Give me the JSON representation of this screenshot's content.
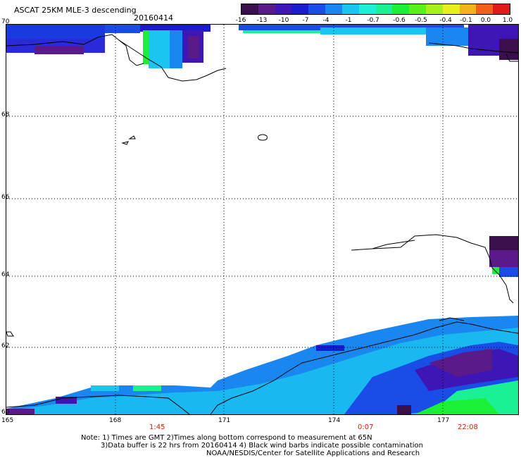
{
  "header": {
    "title": "ASCAT 25KM MLE-3 descending",
    "date": "20160414"
  },
  "colorbar": {
    "colors": [
      "#3a0f4d",
      "#5a1a8a",
      "#3d16b5",
      "#1a1ad0",
      "#1a4de8",
      "#1a87f0",
      "#1ac6f0",
      "#1af0d8",
      "#1af094",
      "#1af035",
      "#5af01a",
      "#a8f01a",
      "#e8f01a",
      "#f0b41a",
      "#f0601a",
      "#e01a1a"
    ],
    "labels": [
      "-16",
      "-13",
      "-10",
      "-7",
      "-4",
      "-1",
      "-0.7",
      "-0.6",
      "-0.5",
      "-0.4",
      "-0.1",
      "0.0",
      "1.0"
    ]
  },
  "axes": {
    "lat_labels": [
      "70",
      "68",
      "66",
      "64",
      "62",
      "60"
    ],
    "lon_labels": [
      "165",
      "168",
      "171",
      "174",
      "177"
    ],
    "time_labels": [
      "1:45",
      "0:07",
      "22:08"
    ]
  },
  "notes": {
    "line1": "Note: 1) Times are GMT 2)Times along bottom correspond to measurement at 65N",
    "line2": "3)Data buffer is 22 hrs from 20160414 4) Black wind barbs indicate possible contamination",
    "line3": "NOAA/NESDIS/Center for Satellite Applications and Research"
  }
}
